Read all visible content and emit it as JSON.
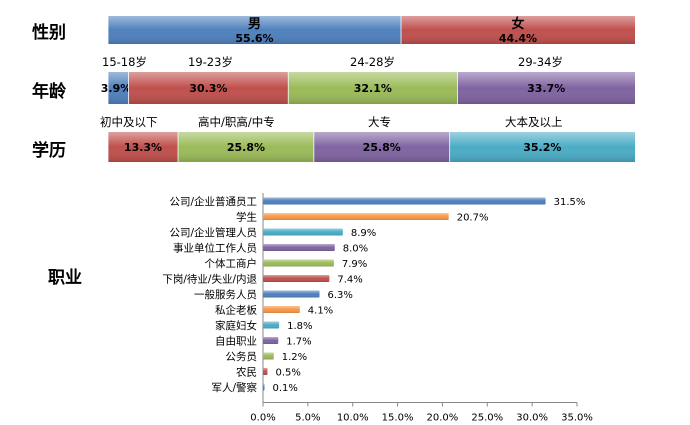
{
  "chart_data": [
    {
      "type": "bar",
      "orientation": "horizontal-stacked",
      "title": "性别",
      "categories": [
        "男",
        "女"
      ],
      "values": [
        55.6,
        44.4
      ],
      "labels": [
        "55.6%",
        "44.4%"
      ],
      "colors": [
        "#4f81bd",
        "#c0504d"
      ]
    },
    {
      "type": "bar",
      "orientation": "horizontal-stacked",
      "title": "年龄",
      "categories": [
        "15-18岁",
        "19-23岁",
        "24-28岁",
        "29-34岁"
      ],
      "values": [
        3.9,
        30.3,
        32.1,
        33.7
      ],
      "labels": [
        "3.9%",
        "30.3%",
        "32.1%",
        "33.7%"
      ],
      "colors": [
        "#4f81bd",
        "#c0504d",
        "#9bbb59",
        "#8064a2"
      ]
    },
    {
      "type": "bar",
      "orientation": "horizontal-stacked",
      "title": "学历",
      "categories": [
        "初中及以下",
        "高中/职高/中专",
        "大专",
        "大本及以上"
      ],
      "values": [
        13.3,
        25.8,
        25.8,
        35.2
      ],
      "labels": [
        "13.3%",
        "25.8%",
        "25.8%",
        "35.2%"
      ],
      "colors": [
        "#c0504d",
        "#9bbb59",
        "#8064a2",
        "#4bacc6"
      ]
    },
    {
      "type": "bar",
      "orientation": "horizontal",
      "title": "职业",
      "categories": [
        "公司/企业普通员工",
        "学生",
        "公司/企业管理人员",
        "事业单位工作人员",
        "个体工商户",
        "下岗/待业/失业/内退",
        "一般服务人员",
        "私企老板",
        "家庭妇女",
        "自由职业",
        "公务员",
        "农民",
        "军人/警察"
      ],
      "values": [
        31.5,
        20.7,
        8.9,
        8.0,
        7.9,
        7.4,
        6.3,
        4.1,
        1.8,
        1.7,
        1.2,
        0.5,
        0.1
      ],
      "labels": [
        "31.5%",
        "20.7%",
        "8.9%",
        "8.0%",
        "7.9%",
        "7.4%",
        "6.3%",
        "4.1%",
        "1.8%",
        "1.7%",
        "1.2%",
        "0.5%",
        "0.1%"
      ],
      "colors": [
        "#4f81bd",
        "#f79646",
        "#4bacc6",
        "#8064a2",
        "#9bbb59",
        "#c0504d",
        "#4f81bd",
        "#f79646",
        "#4bacc6",
        "#8064a2",
        "#9bbb59",
        "#c0504d",
        "#4f81bd"
      ],
      "xlim": [
        0,
        35
      ],
      "xticks": [
        "0.0%",
        "5.0%",
        "10.0%",
        "15.0%",
        "20.0%",
        "25.0%",
        "30.0%",
        "35.0%"
      ],
      "grid": false
    }
  ]
}
